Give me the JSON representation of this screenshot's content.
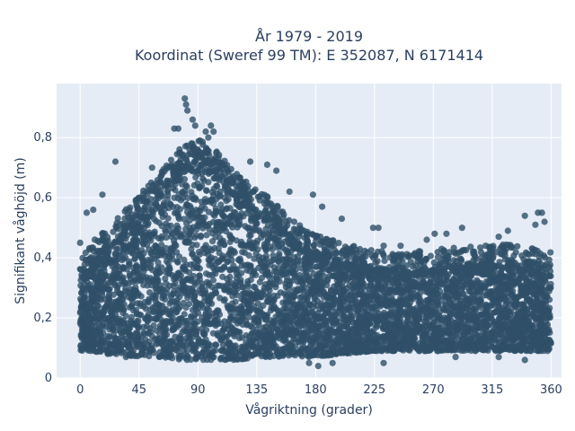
{
  "chart_data": {
    "type": "scatter",
    "title_line1": "År 1979 - 2019",
    "title_line2": "Koordinat (Sweref 99 TM): E 352087, N 6171414",
    "xlabel": "Vågriktning (grader)",
    "ylabel": "Signifikant våghöjd (m)",
    "xlim": [
      -18,
      368
    ],
    "ylim": [
      0,
      0.98
    ],
    "x_ticks": [
      0,
      45,
      90,
      135,
      180,
      225,
      270,
      315,
      360
    ],
    "y_ticks": [
      0,
      0.2,
      0.4,
      0.6,
      0.8
    ],
    "y_tick_labels": [
      "0",
      "0,2",
      "0,4",
      "0,6",
      "0,8"
    ],
    "grid": true,
    "legend": "none",
    "colors": {
      "marker": "#2f5068",
      "plot_bg": "#e5ecf6",
      "grid": "#ffffff"
    },
    "envelope": {
      "x": [
        0,
        10,
        20,
        30,
        45,
        60,
        75,
        90,
        105,
        120,
        135,
        150,
        165,
        180,
        200,
        225,
        250,
        270,
        300,
        330,
        360
      ],
      "low": [
        0.09,
        0.09,
        0.08,
        0.08,
        0.07,
        0.07,
        0.06,
        0.06,
        0.06,
        0.06,
        0.07,
        0.07,
        0.07,
        0.07,
        0.08,
        0.09,
        0.09,
        0.09,
        0.09,
        0.09,
        0.09
      ],
      "high": [
        0.33,
        0.4,
        0.44,
        0.48,
        0.55,
        0.62,
        0.7,
        0.74,
        0.7,
        0.62,
        0.58,
        0.52,
        0.46,
        0.42,
        0.39,
        0.37,
        0.36,
        0.37,
        0.38,
        0.39,
        0.36
      ]
    },
    "outliers": [
      {
        "x": 80,
        "y": 0.93
      },
      {
        "x": 81,
        "y": 0.91
      },
      {
        "x": 82,
        "y": 0.89
      },
      {
        "x": 86,
        "y": 0.86
      },
      {
        "x": 88,
        "y": 0.84
      },
      {
        "x": 96,
        "y": 0.82
      },
      {
        "x": 98,
        "y": 0.8
      },
      {
        "x": 100,
        "y": 0.84
      },
      {
        "x": 102,
        "y": 0.82
      },
      {
        "x": 72,
        "y": 0.83
      },
      {
        "x": 75,
        "y": 0.83
      },
      {
        "x": 27,
        "y": 0.72
      },
      {
        "x": 55,
        "y": 0.7
      },
      {
        "x": 130,
        "y": 0.72
      },
      {
        "x": 143,
        "y": 0.71
      },
      {
        "x": 150,
        "y": 0.69
      },
      {
        "x": 178,
        "y": 0.61
      },
      {
        "x": 160,
        "y": 0.62
      },
      {
        "x": 185,
        "y": 0.57
      },
      {
        "x": 200,
        "y": 0.53
      },
      {
        "x": 224,
        "y": 0.5
      },
      {
        "x": 228,
        "y": 0.5
      },
      {
        "x": 232,
        "y": 0.44
      },
      {
        "x": 245,
        "y": 0.44
      },
      {
        "x": 265,
        "y": 0.46
      },
      {
        "x": 271,
        "y": 0.48
      },
      {
        "x": 280,
        "y": 0.48
      },
      {
        "x": 292,
        "y": 0.5
      },
      {
        "x": 310,
        "y": 0.44
      },
      {
        "x": 320,
        "y": 0.47
      },
      {
        "x": 327,
        "y": 0.49
      },
      {
        "x": 340,
        "y": 0.54
      },
      {
        "x": 350,
        "y": 0.55
      },
      {
        "x": 353,
        "y": 0.55
      },
      {
        "x": 348,
        "y": 0.51
      },
      {
        "x": 355,
        "y": 0.52
      },
      {
        "x": 0,
        "y": 0.45
      },
      {
        "x": 5,
        "y": 0.55
      },
      {
        "x": 10,
        "y": 0.56
      },
      {
        "x": 17,
        "y": 0.61
      },
      {
        "x": 182,
        "y": 0.04
      },
      {
        "x": 193,
        "y": 0.05
      },
      {
        "x": 175,
        "y": 0.05
      },
      {
        "x": 232,
        "y": 0.05
      },
      {
        "x": 287,
        "y": 0.07
      },
      {
        "x": 320,
        "y": 0.07
      },
      {
        "x": 340,
        "y": 0.06
      },
      {
        "x": 35,
        "y": 0.07
      }
    ]
  }
}
